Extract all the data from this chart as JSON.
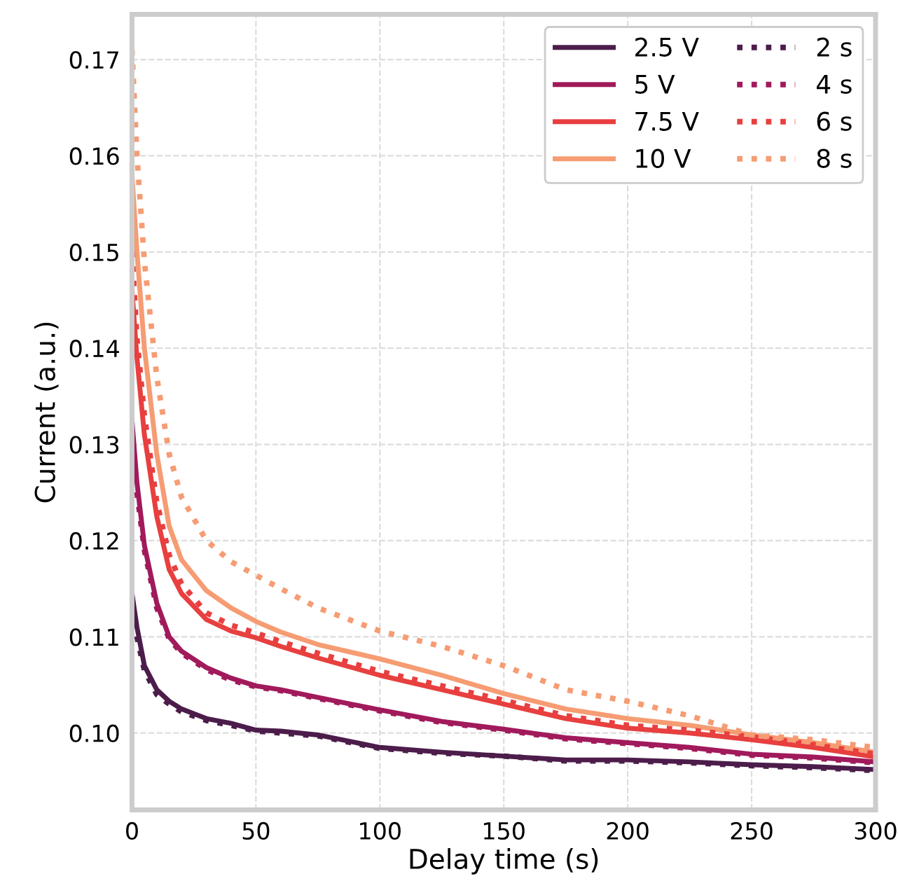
{
  "chart_data": {
    "type": "line",
    "xlabel": "Delay time (s)",
    "ylabel": "Current (a.u.)",
    "x": [
      0,
      2,
      5,
      10,
      15,
      20,
      30,
      40,
      50,
      60,
      75,
      100,
      125,
      150,
      175,
      200,
      225,
      250,
      275,
      300
    ],
    "series": [
      {
        "name": "2.5 V",
        "color": "#4c1d4b",
        "line_style": "solid",
        "values": [
          0.1145,
          0.111,
          0.107,
          0.1045,
          0.1033,
          0.1025,
          0.1015,
          0.101,
          0.1003,
          0.1002,
          0.0998,
          0.0985,
          0.098,
          0.0976,
          0.0972,
          0.0972,
          0.097,
          0.0967,
          0.0965,
          0.0962
        ]
      },
      {
        "name": "5 V",
        "color": "#a11a5b",
        "line_style": "solid",
        "values": [
          0.1325,
          0.126,
          0.1195,
          0.1135,
          0.11,
          0.1085,
          0.1068,
          0.1057,
          0.1049,
          0.1045,
          0.1037,
          0.1024,
          0.1012,
          0.1004,
          0.0995,
          0.099,
          0.0985,
          0.0978,
          0.0975,
          0.097
        ]
      },
      {
        "name": "7.5 V",
        "color": "#e83f3f",
        "line_style": "solid",
        "values": [
          0.146,
          0.139,
          0.131,
          0.1225,
          0.117,
          0.1145,
          0.1118,
          0.1106,
          0.1099,
          0.109,
          0.1078,
          0.106,
          0.1045,
          0.103,
          0.1015,
          0.1005,
          0.1,
          0.0993,
          0.0985,
          0.0975
        ]
      },
      {
        "name": "10 V",
        "color": "#f69c73",
        "line_style": "solid",
        "values": [
          0.158,
          0.15,
          0.14,
          0.129,
          0.1215,
          0.118,
          0.1148,
          0.113,
          0.1116,
          0.1105,
          0.1092,
          0.1077,
          0.106,
          0.1041,
          0.1025,
          0.1015,
          0.1008,
          0.0998,
          0.099,
          0.098
        ]
      },
      {
        "name": "2 s",
        "color": "#4c1d4b",
        "line_style": "dotted",
        "values": [
          0.113,
          0.11,
          0.1065,
          0.104,
          0.103,
          0.1022,
          0.1013,
          0.1008,
          0.1002,
          0.1,
          0.0997,
          0.0984,
          0.0979,
          0.0976,
          0.0971,
          0.0971,
          0.0969,
          0.0966,
          0.0964,
          0.0961
        ]
      },
      {
        "name": "4 s",
        "color": "#a11a5b",
        "line_style": "dotted",
        "values": [
          0.131,
          0.125,
          0.119,
          0.113,
          0.1098,
          0.1083,
          0.1066,
          0.1055,
          0.1048,
          0.1044,
          0.1036,
          0.1023,
          0.1011,
          0.1003,
          0.0994,
          0.0989,
          0.0984,
          0.0977,
          0.0974,
          0.0969
        ]
      },
      {
        "name": "6 s",
        "color": "#e83f3f",
        "line_style": "dotted",
        "values": [
          0.15,
          0.141,
          0.133,
          0.124,
          0.1185,
          0.1155,
          0.1125,
          0.1112,
          0.1104,
          0.1095,
          0.1083,
          0.1064,
          0.1049,
          0.1034,
          0.1018,
          0.1008,
          0.1003,
          0.0996,
          0.0988,
          0.0978
        ]
      },
      {
        "name": "8 s",
        "color": "#f69c73",
        "line_style": "dotted",
        "values": [
          0.171,
          0.16,
          0.149,
          0.137,
          0.129,
          0.1245,
          0.12,
          0.1178,
          0.1164,
          0.115,
          0.113,
          0.1106,
          0.109,
          0.107,
          0.1045,
          0.1033,
          0.1018,
          0.0998,
          0.0993,
          0.0985
        ]
      }
    ],
    "xlim": [
      0,
      300
    ],
    "xticks": [
      0,
      50,
      100,
      150,
      200,
      250,
      300
    ],
    "ylim": [
      0.092,
      0.1747
    ],
    "yticks": [
      {
        "value": 0.1,
        "label": "0.10"
      },
      0.11,
      0.12,
      0.13,
      0.14,
      0.15,
      0.16,
      0.17
    ],
    "grid": true,
    "legend": "top right"
  }
}
